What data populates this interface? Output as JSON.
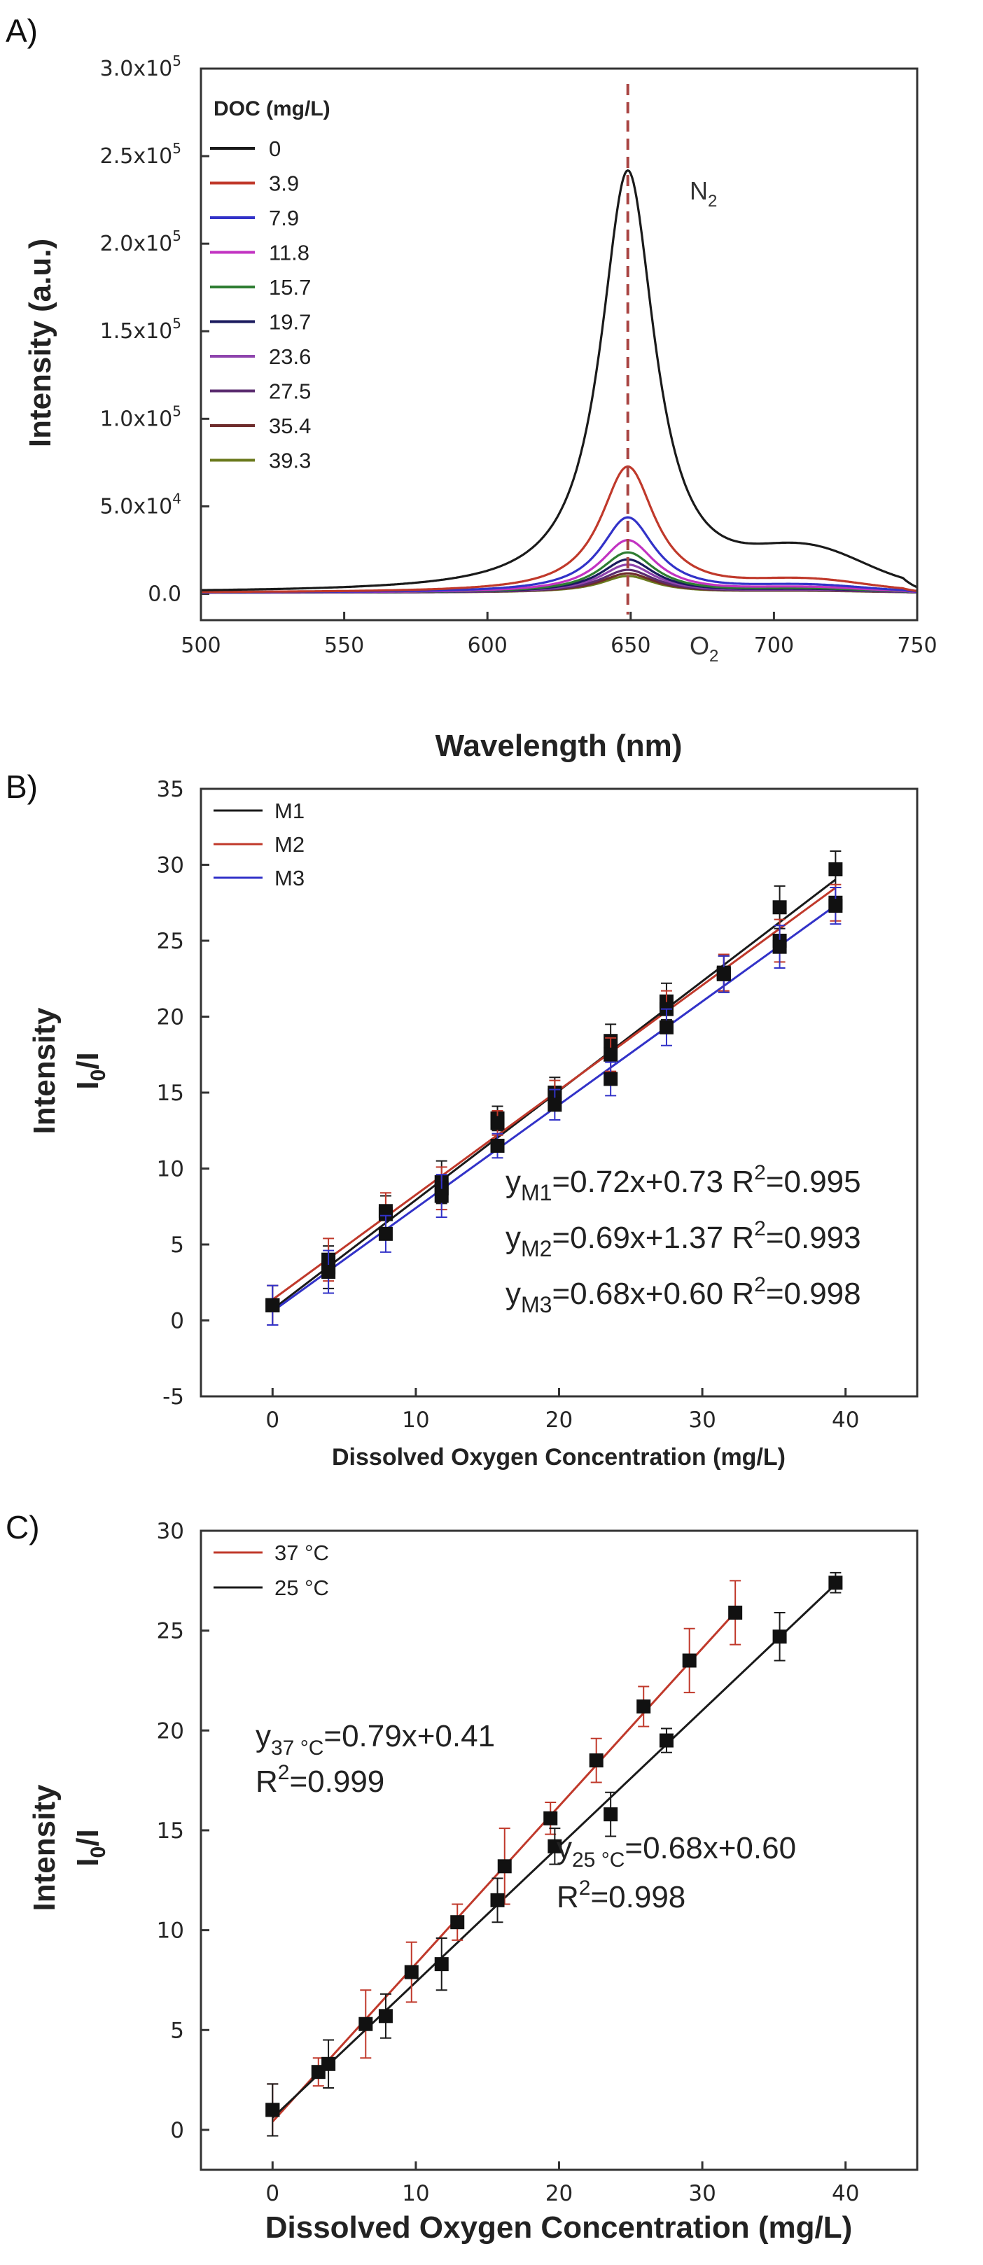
{
  "chart_data": [
    {
      "type": "line",
      "panel_label": "A)",
      "title": "",
      "xlabel": "Wavelength (nm)",
      "ylabel": "Intensity (a.u.)",
      "xlim": [
        500,
        750
      ],
      "ylim": [
        -15000,
        300000
      ],
      "x_ticks": [
        "500",
        "550",
        "600",
        "650",
        "700",
        "750"
      ],
      "y_ticks": [
        {
          "mant": "0.0",
          "exp": ""
        },
        {
          "mant": "5.0x10",
          "exp": "4"
        },
        {
          "mant": "1.0x10",
          "exp": "5"
        },
        {
          "mant": "1.5x10",
          "exp": "5"
        },
        {
          "mant": "2.0x10",
          "exp": "5"
        },
        {
          "mant": "2.5x10",
          "exp": "5"
        },
        {
          "mant": "3.0x10",
          "exp": "5"
        }
      ],
      "y_tick_values": [
        0,
        50000,
        100000,
        150000,
        200000,
        250000,
        300000
      ],
      "legend_title": "DOC (mg/L)",
      "legend_placement": "top-left",
      "annotations": {
        "top": "N",
        "top_sub": "2",
        "bottom": "O",
        "bottom_sub": "2"
      },
      "peak_marker_x": 649,
      "series": [
        {
          "name": "0",
          "color": "#1a1a1a",
          "peak": 241000,
          "shoulder": 20000
        },
        {
          "name": "3.9",
          "color": "#c0392b",
          "peak": 72000,
          "shoulder": 6000
        },
        {
          "name": "7.9",
          "color": "#3232c8",
          "peak": 43000,
          "shoulder": 3500
        },
        {
          "name": "11.8",
          "color": "#c233c2",
          "peak": 30000,
          "shoulder": 2500
        },
        {
          "name": "15.7",
          "color": "#2e7d32",
          "peak": 23000,
          "shoulder": 1900
        },
        {
          "name": "19.7",
          "color": "#1a1a5e",
          "peak": 19000,
          "shoulder": 1600
        },
        {
          "name": "23.6",
          "color": "#8e44ad",
          "peak": 16000,
          "shoulder": 1300
        },
        {
          "name": "27.5",
          "color": "#5b2c6f",
          "peak": 13000,
          "shoulder": 1100
        },
        {
          "name": "35.4",
          "color": "#6e2c2c",
          "peak": 11000,
          "shoulder": 900
        },
        {
          "name": "39.3",
          "color": "#6b7a1e",
          "peak": 9500,
          "shoulder": 800
        }
      ]
    },
    {
      "type": "scatter",
      "panel_label": "B)",
      "xlabel": "Dissolved Oxygen Concentration (mg/L)",
      "ylabel_line1": "Intensity",
      "ylabel_line2_main": "I",
      "ylabel_line2_sub": "0",
      "ylabel_line2_rest": "/I",
      "xlim": [
        -5,
        45
      ],
      "ylim": [
        -5,
        35
      ],
      "x_ticks": [
        0,
        10,
        20,
        30,
        40
      ],
      "y_ticks": [
        -5,
        0,
        5,
        10,
        15,
        20,
        25,
        30,
        35
      ],
      "legend_placement": "top-left",
      "x": [
        0,
        3.9,
        7.9,
        11.8,
        15.7,
        19.7,
        23.6,
        27.5,
        31.5,
        35.4,
        39.3
      ],
      "series": [
        {
          "name": "M1",
          "color": "#1a1a1a",
          "slope": 0.72,
          "intercept": 0.73,
          "values": [
            1.0,
            3.5,
            7.0,
            9.1,
            13.3,
            15.0,
            18.4,
            21.0,
            22.8,
            27.2,
            29.7
          ],
          "errors": [
            1.3,
            1.4,
            1.2,
            1.4,
            0.8,
            1.0,
            1.1,
            1.2,
            1.2,
            1.4,
            1.2
          ],
          "equation": {
            "y": "y",
            "sub": "M1",
            "rest": "=0.72x+0.73 R",
            "sup": "2",
            "tail": "=0.995"
          }
        },
        {
          "name": "M2",
          "color": "#c0392b",
          "slope": 0.69,
          "intercept": 1.37,
          "values": [
            1.0,
            4.0,
            7.2,
            8.7,
            13.0,
            14.8,
            17.5,
            20.5,
            22.9,
            25.0,
            27.5
          ],
          "errors": [
            1.3,
            1.4,
            1.2,
            1.4,
            0.8,
            1.0,
            1.1,
            1.2,
            1.2,
            1.4,
            1.2
          ],
          "equation": {
            "y": "y",
            "sub": "M2",
            "rest": "=0.69x+1.37 R",
            "sup": "2",
            "tail": "=0.993"
          }
        },
        {
          "name": "M3",
          "color": "#3232c8",
          "slope": 0.68,
          "intercept": 0.6,
          "values": [
            1.0,
            3.2,
            5.7,
            8.2,
            11.5,
            14.2,
            15.9,
            19.3,
            22.8,
            24.6,
            27.3
          ],
          "errors": [
            1.3,
            1.4,
            1.2,
            1.4,
            0.8,
            1.0,
            1.1,
            1.2,
            1.2,
            1.4,
            1.2
          ],
          "equation": {
            "y": "y",
            "sub": "M3",
            "rest": "=0.68x+0.60 R",
            "sup": "2",
            "tail": "=0.998"
          }
        }
      ]
    },
    {
      "type": "scatter",
      "panel_label": "C)",
      "xlabel": "Dissolved Oxygen Concentration (mg/L)",
      "ylabel_line1": "Intensity",
      "ylabel_line2_main": "I",
      "ylabel_line2_sub": "0",
      "ylabel_line2_rest": "/I",
      "xlim": [
        -5,
        45
      ],
      "ylim": [
        -2,
        30
      ],
      "x_ticks": [
        0,
        10,
        20,
        30,
        40
      ],
      "y_ticks": [
        0,
        5,
        10,
        15,
        20,
        25,
        30
      ],
      "legend_placement": "top-left",
      "series": [
        {
          "name": "37 °C",
          "color": "#c0392b",
          "slope": 0.79,
          "intercept": 0.41,
          "x": [
            0,
            3.2,
            6.5,
            9.7,
            12.9,
            16.2,
            19.4,
            22.6,
            25.9,
            29.1,
            32.3
          ],
          "values": [
            1.0,
            2.9,
            5.3,
            7.9,
            10.4,
            13.2,
            15.6,
            18.5,
            21.2,
            23.5,
            25.9
          ],
          "errors": [
            1.3,
            0.7,
            1.7,
            1.5,
            0.9,
            1.9,
            0.8,
            1.1,
            1.0,
            1.6,
            1.6
          ],
          "equation": {
            "y": "y",
            "sub": "37 °C",
            "rest": "=0.79x+0.41",
            "r_line": "R",
            "sup": "2",
            "tail": "=0.999"
          }
        },
        {
          "name": "25 °C",
          "color": "#1a1a1a",
          "slope": 0.68,
          "intercept": 0.6,
          "x": [
            0,
            3.9,
            7.9,
            11.8,
            15.7,
            19.7,
            23.6,
            27.5,
            35.4,
            39.3
          ],
          "values": [
            1.0,
            3.3,
            5.7,
            8.3,
            11.5,
            14.2,
            15.8,
            19.5,
            24.7,
            27.4
          ],
          "errors": [
            1.3,
            1.2,
            1.1,
            1.3,
            1.1,
            0.9,
            1.1,
            0.6,
            1.2,
            0.5
          ],
          "equation": {
            "y": "y",
            "sub": "25 °C",
            "rest": "=0.68x+0.60",
            "r_line": "R",
            "sup": "2",
            "tail": "=0.998"
          }
        }
      ]
    }
  ]
}
